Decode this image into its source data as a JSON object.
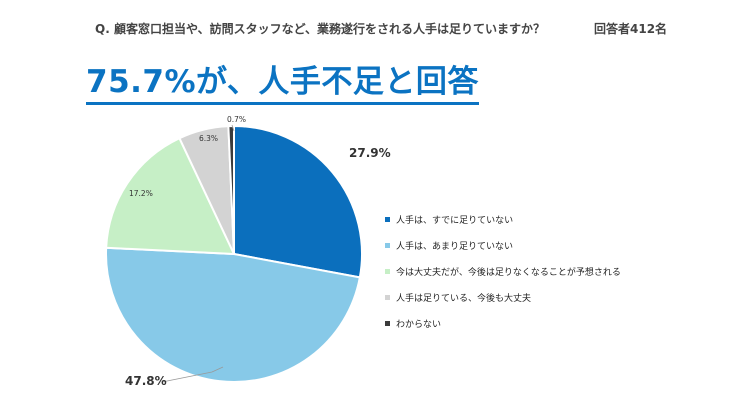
{
  "header": {
    "question": "Q. 顧客窓口担当や、訪問スタッフなど、業務遂行をされる人手は足りていますか？",
    "respondents": "回答者412名"
  },
  "headline": "75.7%が、人手不足と回答",
  "chart_data": {
    "type": "pie",
    "start_angle_deg": 0,
    "direction": "clockwise",
    "legend_position": "right",
    "slices": [
      {
        "label": "人手は、すでに足りていない",
        "value": 27.9,
        "display": "27.9%",
        "color": "#0b6fbd"
      },
      {
        "label": "人手は、あまり足りていない",
        "value": 47.8,
        "display": "47.8%",
        "color": "#87c9e8"
      },
      {
        "label": "今は大丈夫だが、今後は足りなくなることが予想される",
        "value": 17.2,
        "display": "17.2%",
        "color": "#c6efc6"
      },
      {
        "label": "人手は足りている、今後も大丈夫",
        "value": 6.3,
        "display": "6.3%",
        "color": "#d3d3d3"
      },
      {
        "label": "わからない",
        "value": 0.7,
        "display": "0.7%",
        "color": "#3b3b3b"
      }
    ]
  }
}
